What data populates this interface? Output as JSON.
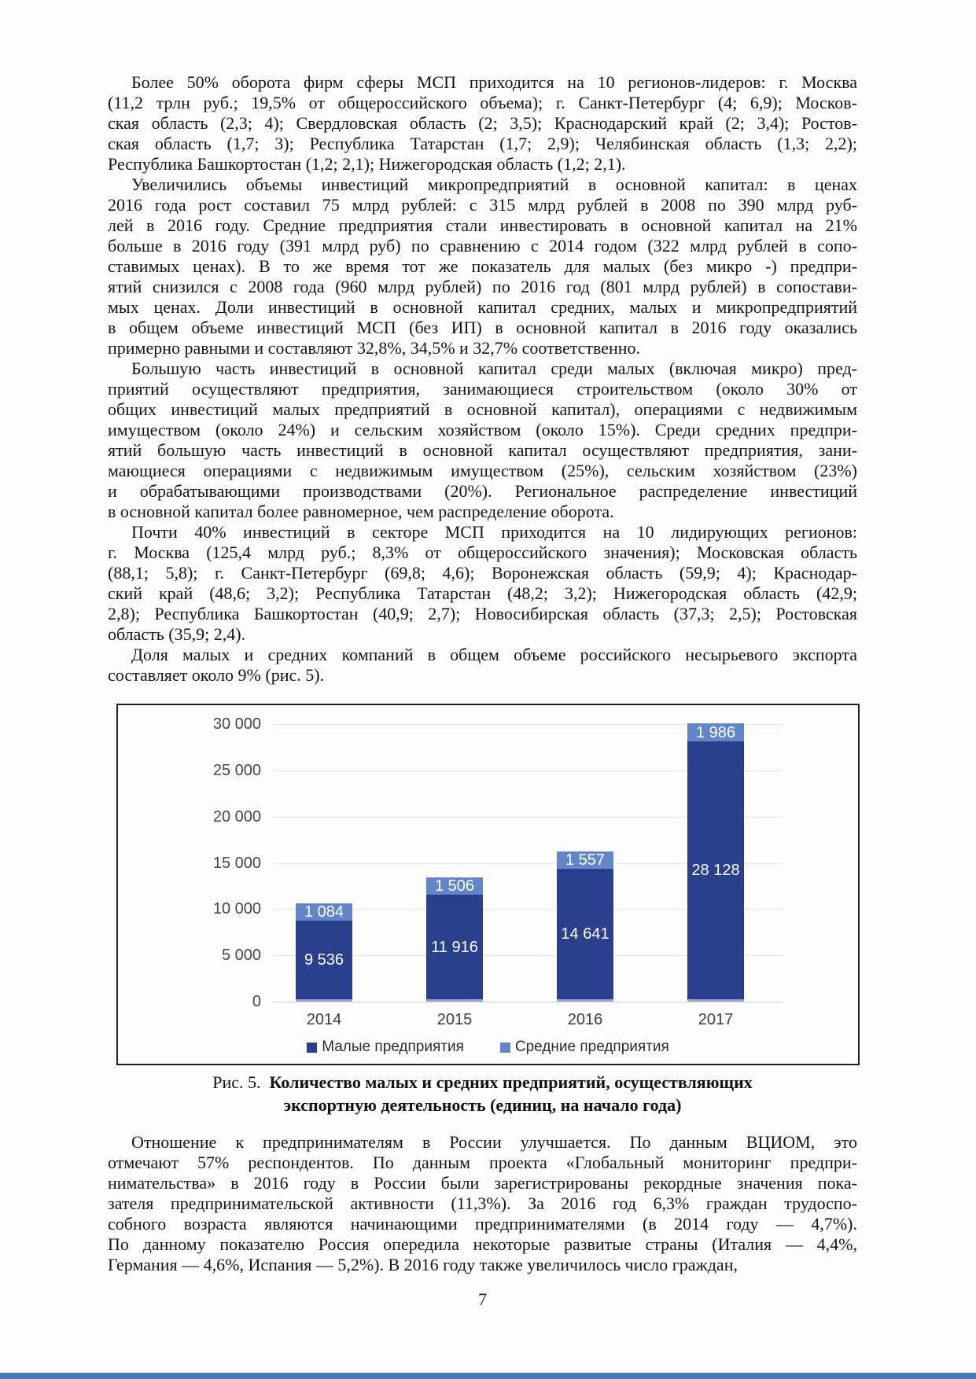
{
  "page": {
    "number": "7",
    "bottom_strip_color": "#4a78bc"
  },
  "paragraphs_before_figure": [
    {
      "lines": [
        "Более 50% оборота фирм сферы МСП приходится на 10 регионов-лидеров: г. Москва",
        "(11,2 трлн руб.; 19,5% от общероссийского объема); г. Санкт-Петербург (4; 6,9); Москов-",
        "ская область (2,3; 4); Свердловская область (2; 3,5); Краснодарский край (2; 3,4); Ростов-",
        "ская область (1,7; 3); Республика Татарстан (1,7; 2,9); Челябинская область (1,3; 2,2);",
        "Республика Башкортостан (1,2; 2,1); Нижегородская область (1,2; 2,1)."
      ]
    },
    {
      "lines": [
        "Увеличились объемы инвестиций микропредприятий в основной капитал: в ценах",
        "2016 года рост составил 75 млрд рублей: с 315 млрд рублей в 2008 по 390 млрд руб-",
        "лей в 2016 году. Средние предприятия стали инвестировать в основной капитал на 21%",
        "больше в 2016 году (391 млрд руб) по сравнению с 2014 годом (322 млрд рублей в сопо-",
        "ставимых ценах). В то же время тот же показатель для малых (без микро -) предпри-",
        "ятий снизился с 2008 года (960 млрд рублей) по 2016 год (801 млрд рублей) в сопостави-",
        "мых ценах. Доли инвестиций в основной капитал средних, малых и микропредприятий",
        "в общем объеме инвестиций МСП (без ИП) в основной капитал в 2016 году оказались",
        "примерно равными и составляют 32,8%, 34,5% и 32,7% соответственно."
      ]
    },
    {
      "lines": [
        "Большую часть инвестиций в основной капитал среди малых (включая микро) пред-",
        "приятий осуществляют предприятия, занимающиеся строительством (около 30% от",
        "общих инвестиций малых предприятий в основной капитал), операциями с недвижимым",
        "имуществом (около 24%) и сельским хозяйством (около 15%). Среди средних предпри-",
        "ятий большую часть инвестиций в основной капитал осуществляют предприятия, зани-",
        "мающиеся операциями с недвижимым имуществом (25%), сельским хозяйством (23%)",
        "и обрабатывающими производствами (20%). Региональное распределение инвестиций",
        "в основной капитал более равномерное, чем распределение оборота."
      ]
    },
    {
      "lines": [
        "Почти 40% инвестиций в секторе МСП приходится на 10 лидирующих регионов:",
        "г. Москва (125,4 млрд руб.; 8,3% от общероссийского значения); Московская область",
        "(88,1; 5,8); г. Санкт-Петербург (69,8; 4,6); Воронежская область (59,9; 4); Краснодар-",
        "ский край (48,6; 3,2); Республика Татарстан (48,2; 3,2); Нижегородская область (42,9;",
        "2,8); Республика Башкортостан (40,9; 2,7); Новосибирская область (37,3; 2,5); Ростовская",
        "область (35,9; 2,4)."
      ]
    },
    {
      "lines": [
        "Доля малых и средних компаний в общем объеме российского несырьевого экспорта",
        "составляет около 9% (рис. 5)."
      ]
    }
  ],
  "figure": {
    "caption_prefix": "Рис. 5.",
    "caption_bold_line1": "Количество малых и средних предприятий, осуществляющих",
    "caption_bold_line2": "экспортную деятельность (единиц, на начало года)"
  },
  "chart_data": {
    "type": "bar",
    "stacked": true,
    "title": "",
    "xlabel": "",
    "ylabel": "",
    "categories": [
      "2014",
      "2015",
      "2016",
      "2017"
    ],
    "series": [
      {
        "name": "Малые предприятия",
        "color": "#2b408d",
        "values": [
          9536,
          11916,
          14641,
          28128
        ],
        "labels": [
          "9 536",
          "11 916",
          "14 641",
          "28 128"
        ]
      },
      {
        "name": "Средние предприятия",
        "color": "#6286c7",
        "values": [
          1084,
          1506,
          1557,
          1986
        ],
        "labels": [
          "1 084",
          "1 506",
          "1 557",
          "1 986"
        ]
      }
    ],
    "y_ticks": [
      {
        "value": 30000,
        "label": "30 000"
      },
      {
        "value": 25000,
        "label": "25 000"
      },
      {
        "value": 20000,
        "label": "20 000"
      },
      {
        "value": 15000,
        "label": "15 000"
      },
      {
        "value": 10000,
        "label": "10 000"
      },
      {
        "value": 5000,
        "label": "5 000"
      },
      {
        "value": 0,
        "label": "0"
      }
    ],
    "ylim": [
      0,
      30000
    ],
    "grid": true,
    "legend_position": "bottom"
  },
  "paragraphs_after_figure": [
    {
      "lines": [
        "Отношение к предпринимателям в России улучшается. По данным ВЦИОМ, это",
        "отмечают 57% респондентов. По данным проекта «Глобальный мониторинг предпри-",
        "нимательства» в 2016 году в России были зарегистрированы рекордные значения пока-",
        "зателя предпринимательской активности (11,3%). За 2016 год 6,3% граждан трудоспо-",
        "собного возраста являются начинающими предпринимателями (в 2014 году — 4,7%).",
        "По данному показателю Россия опередила некоторые развитые страны (Италия — 4,4%,",
        "Германия — 4,6%, Испания — 5,2%). В 2016 году также увеличилось число граждан,"
      ]
    }
  ]
}
